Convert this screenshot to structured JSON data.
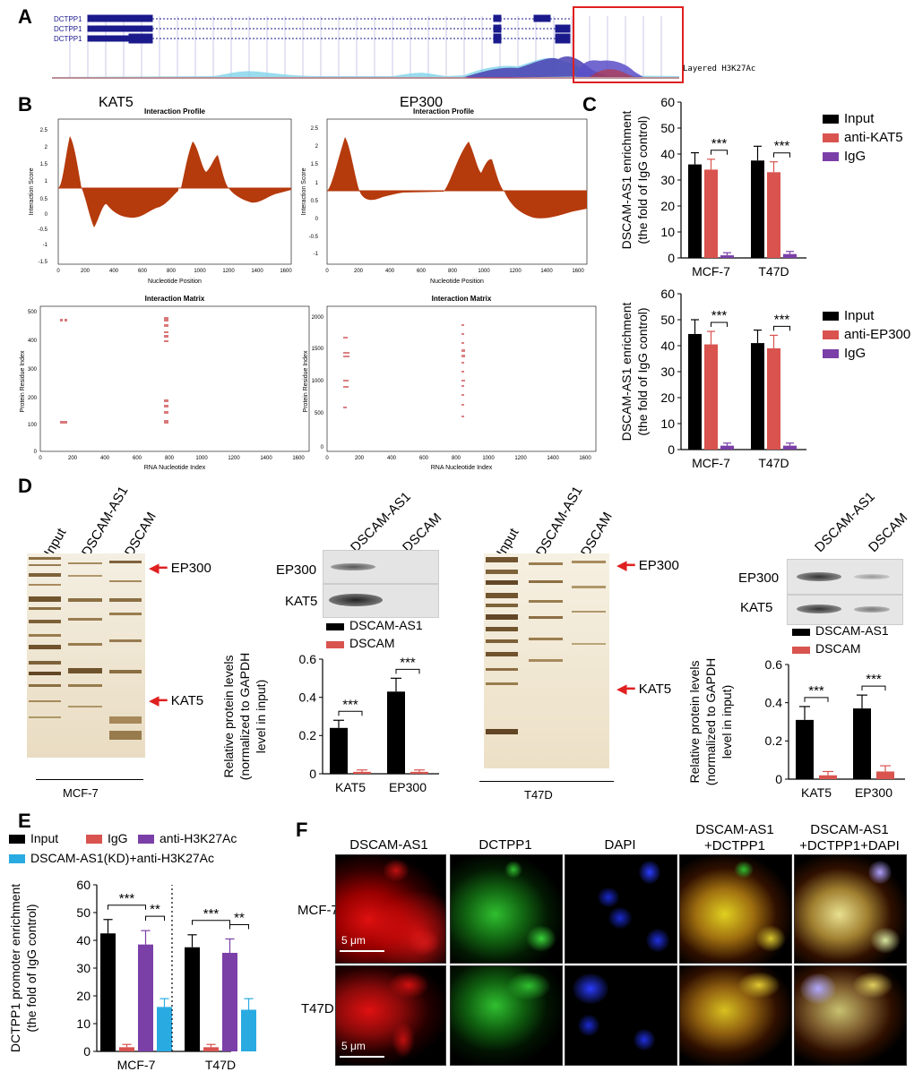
{
  "panel_labels": {
    "A": "A",
    "B": "B",
    "C": "C",
    "D": "D",
    "E": "E",
    "F": "F"
  },
  "panelA": {
    "tracks": [
      "DCTPP1",
      "DCTPP1",
      "DCTPP1"
    ],
    "layer_label": "Layered H3K27Ac",
    "colors": {
      "gene": "#1a1a8c",
      "highlight": "#e02020"
    }
  },
  "panelB": {
    "kat5": {
      "title": "KAT5",
      "profile_title": "Interaction Profile",
      "xlabel": "Nucleotide Position",
      "ylabel": "Interaction Score",
      "xticks": [
        "0",
        "200",
        "400",
        "600",
        "800",
        "1000",
        "1200",
        "1400",
        "1600"
      ],
      "yticks": [
        "2.5",
        "2",
        "1.5",
        "1",
        "0.5",
        "0",
        "-0.5",
        "-1",
        "-1.5"
      ],
      "matrix_title": "Interaction Matrix",
      "matrix_xlabel": "RNA Nucleotide Index",
      "matrix_ylabel": "Protein Residue Index",
      "matrix_xticks": [
        "0",
        "200",
        "400",
        "600",
        "800",
        "1000",
        "1200",
        "1400",
        "1600"
      ],
      "matrix_yticks": [
        "500",
        "400",
        "300",
        "200",
        "100",
        "0"
      ]
    },
    "ep300": {
      "title": "EP300",
      "profile_title": "Interaction Profile",
      "xlabel": "Nucleotide Position",
      "ylabel": "Interaction Score",
      "xticks": [
        "0",
        "200",
        "400",
        "600",
        "800",
        "1000",
        "1200",
        "1400",
        "1600"
      ],
      "yticks": [
        "2.5",
        "2",
        "1.5",
        "1",
        "0.5",
        "0",
        "-0.5",
        "-1"
      ],
      "matrix_title": "Interaction Matrix",
      "matrix_xlabel": "RNA Nucleotide Index",
      "matrix_ylabel": "Protein Residue Index",
      "matrix_xticks": [
        "0",
        "200",
        "400",
        "600",
        "800",
        "1000",
        "1200",
        "1400",
        "1600"
      ],
      "matrix_yticks": [
        "2000",
        "1500",
        "1000",
        "500",
        "0"
      ]
    },
    "colors": {
      "fill": "#b53a0c",
      "matrix": "#d0575a"
    }
  },
  "panelD": {
    "gel_lanes": [
      "Input",
      "DSCAM-AS1",
      "DSCAM"
    ],
    "wb_lanes": [
      "DSCAM-AS1",
      "DSCAM"
    ],
    "wb_rows": [
      "EP300",
      "KAT5"
    ],
    "arrows": [
      "EP300",
      "KAT5"
    ],
    "cells": [
      "MCF-7",
      "T47D"
    ],
    "legend": [
      "DSCAM-AS1",
      "DSCAM"
    ],
    "ylabel": [
      "Relative protein levels",
      "(normalized to GAPDH",
      "level in input)"
    ],
    "sig": "***"
  },
  "panelF": {
    "columns": [
      "DSCAM-AS1",
      "DCTPP1",
      "DAPI",
      "DSCAM-AS1\n+DCTPP1",
      "DSCAM-AS1\n+DCTPP1+DAPI"
    ],
    "col1": "DSCAM-AS1",
    "col2": "DCTPP1",
    "col3": "DAPI",
    "col4a": "DSCAM-AS1",
    "col4b": "+DCTPP1",
    "col5a": "DSCAM-AS1",
    "col5b": "+DCTPP1+DAPI",
    "rows": [
      "MCF-7",
      "T47D"
    ],
    "scale": "5 μm"
  },
  "chart_data": [
    {
      "id": "C-top",
      "type": "bar",
      "categories": [
        "MCF-7",
        "T47D"
      ],
      "series": [
        {
          "name": "Input",
          "values": [
            36,
            37.5
          ],
          "errors": [
            4.5,
            5.5
          ],
          "color": "#000000"
        },
        {
          "name": "anti-KAT5",
          "values": [
            34,
            33
          ],
          "errors": [
            4,
            4
          ],
          "color": "#d9534f"
        },
        {
          "name": "IgG",
          "values": [
            1,
            1.5
          ],
          "errors": [
            1,
            1
          ],
          "color": "#7b3fa8"
        }
      ],
      "ylabel": [
        "DSCAM-AS1 enrichment",
        "(the fold of IgG control)"
      ],
      "ylim": [
        0,
        60
      ],
      "yticks": [
        "0",
        "10",
        "20",
        "30",
        "40",
        "50",
        "60"
      ],
      "sig": [
        "***",
        "***"
      ]
    },
    {
      "id": "C-bottom",
      "type": "bar",
      "categories": [
        "MCF-7",
        "T47D"
      ],
      "series": [
        {
          "name": "Input",
          "values": [
            44.5,
            41
          ],
          "errors": [
            5.5,
            5
          ],
          "color": "#000000"
        },
        {
          "name": "anti-EP300",
          "values": [
            40.5,
            39
          ],
          "errors": [
            5,
            5
          ],
          "color": "#d9534f"
        },
        {
          "name": "IgG",
          "values": [
            1.5,
            1.5
          ],
          "errors": [
            1,
            1
          ],
          "color": "#7b3fa8"
        }
      ],
      "ylabel": [
        "DSCAM-AS1 enrichment",
        "(the fold of IgG control)"
      ],
      "ylim": [
        0,
        60
      ],
      "yticks": [
        "0",
        "10",
        "20",
        "30",
        "40",
        "50",
        "60"
      ],
      "sig": [
        "***",
        "***"
      ]
    },
    {
      "id": "D-MCF7",
      "type": "bar",
      "categories": [
        "KAT5",
        "EP300"
      ],
      "series": [
        {
          "name": "DSCAM-AS1",
          "values": [
            0.24,
            0.43
          ],
          "errors": [
            0.04,
            0.07
          ],
          "color": "#000000"
        },
        {
          "name": "DSCAM",
          "values": [
            0.01,
            0.01
          ],
          "errors": [
            0.01,
            0.01
          ],
          "color": "#d9534f"
        }
      ],
      "ylim": [
        0,
        0.6
      ],
      "yticks": [
        "0",
        "0.2",
        "0.4",
        "0.6"
      ],
      "sig": [
        "***",
        "***"
      ]
    },
    {
      "id": "D-T47D",
      "type": "bar",
      "categories": [
        "KAT5",
        "EP300"
      ],
      "series": [
        {
          "name": "DSCAM-AS1",
          "values": [
            0.31,
            0.37
          ],
          "errors": [
            0.07,
            0.07
          ],
          "color": "#000000"
        },
        {
          "name": "DSCAM",
          "values": [
            0.02,
            0.04
          ],
          "errors": [
            0.02,
            0.03
          ],
          "color": "#d9534f"
        }
      ],
      "ylim": [
        0,
        0.6
      ],
      "yticks": [
        "0",
        "0.2",
        "0.4",
        "0.6"
      ],
      "sig": [
        "***",
        "***"
      ]
    },
    {
      "id": "E",
      "type": "bar",
      "categories": [
        "MCF-7",
        "T47D"
      ],
      "series": [
        {
          "name": "Input",
          "values": [
            42.5,
            37.5
          ],
          "errors": [
            5,
            4.5
          ],
          "color": "#000000"
        },
        {
          "name": "IgG",
          "values": [
            1.5,
            1.5
          ],
          "errors": [
            1,
            1
          ],
          "color": "#d9534f"
        },
        {
          "name": "anti-H3K27Ac",
          "values": [
            38.5,
            35.5
          ],
          "errors": [
            5,
            5
          ],
          "color": "#7b3fa8"
        },
        {
          "name": "DSCAM-AS1(KD)+anti-H3K27Ac",
          "values": [
            16,
            15
          ],
          "errors": [
            3,
            4
          ],
          "color": "#29abe2"
        }
      ],
      "ylabel": [
        "DCTPP1 promoter enrichment",
        "(the fold of IgG control)"
      ],
      "ylim": [
        0,
        60
      ],
      "yticks": [
        "0",
        "10",
        "20",
        "30",
        "40",
        "50",
        "60"
      ],
      "sig": [
        [
          "***",
          "**"
        ],
        [
          "***",
          "**"
        ]
      ]
    }
  ]
}
